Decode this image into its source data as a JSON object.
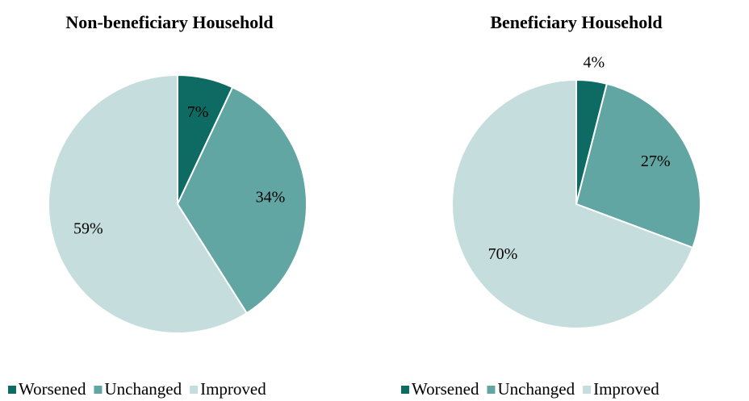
{
  "chart_data": [
    {
      "type": "pie",
      "title": "Non-beneficiary Household",
      "categories": [
        "Worsened",
        "Unchanged",
        "Improved"
      ],
      "values": [
        7,
        34,
        59
      ],
      "value_labels": [
        "7%",
        "34%",
        "59%"
      ],
      "colors": [
        "#0d6b63",
        "#62a6a3",
        "#c5dedd"
      ],
      "legend": "bottom"
    },
    {
      "type": "pie",
      "title": "Beneficiary Household",
      "categories": [
        "Worsened",
        "Unchanged",
        "Improved"
      ],
      "values": [
        4,
        27,
        70
      ],
      "value_labels": [
        "4%",
        "27%",
        "70%"
      ],
      "colors": [
        "#0d6b63",
        "#62a6a3",
        "#c5dedd"
      ],
      "legend": "bottom"
    }
  ]
}
